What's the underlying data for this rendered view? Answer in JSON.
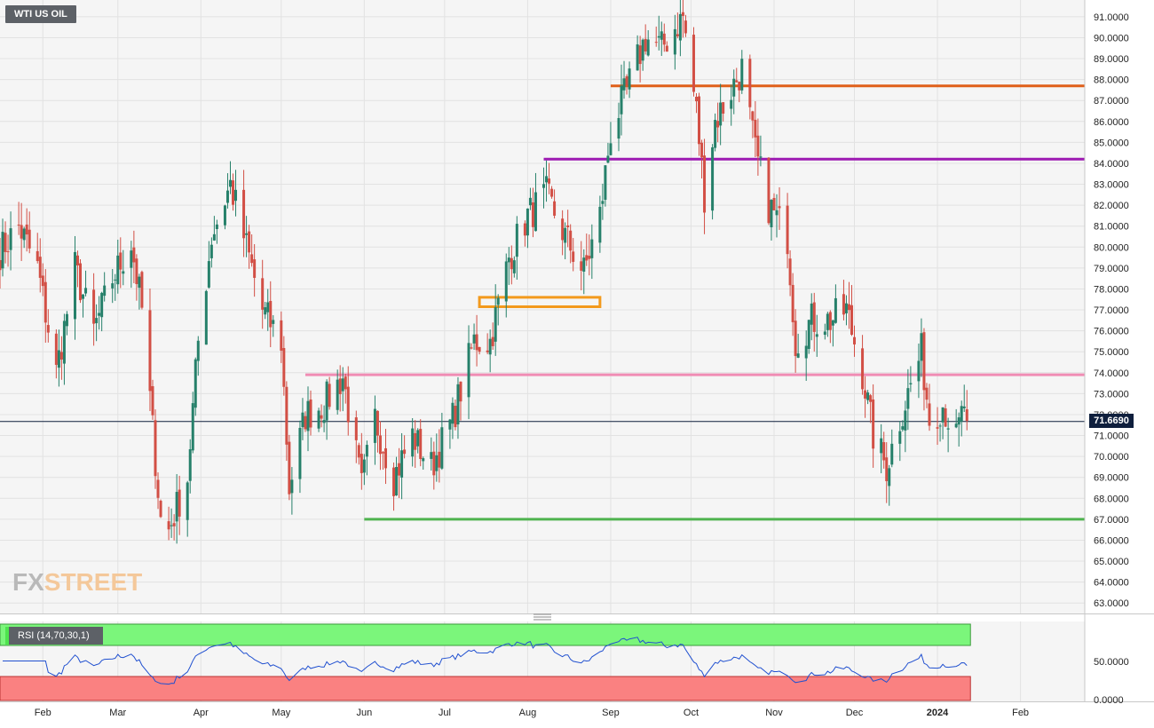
{
  "symbol": "WTI US OIL",
  "logo": {
    "fx": "FX",
    "street": "STREET"
  },
  "last_price_label": "71.6690",
  "price_axis_labels": [
    "91.0000",
    "90.0000",
    "89.0000",
    "88.0000",
    "87.0000",
    "86.0000",
    "85.0000",
    "84.0000",
    "83.0000",
    "82.0000",
    "81.0000",
    "80.0000",
    "79.0000",
    "78.0000",
    "77.0000",
    "76.0000",
    "75.0000",
    "74.0000",
    "73.0000",
    "72.0000",
    "71.0000",
    "70.0000",
    "69.0000",
    "68.0000",
    "67.0000",
    "66.0000",
    "65.0000",
    "64.0000",
    "63.0000"
  ],
  "rsi": {
    "title": "RSI (14,70,30,1)",
    "axis_labels": [
      "50.0000",
      "0.0000"
    ],
    "overbought": 70,
    "oversold": 30
  },
  "colors": {
    "up": "#26806a",
    "down": "#d24f45",
    "orange_line": "#e0601a",
    "purple_line": "#9d1ab2",
    "pink_line": "#f08cb4",
    "green_line": "#4fb34f",
    "zone_box": "#f39a1d",
    "rsi_line": "#2050d0",
    "rsi_top": "#7bf67b",
    "rsi_bottom": "#fa8181",
    "last_price": "#0f1f3d"
  },
  "chart_data": {
    "type": "candlestick",
    "title": "WTI US OIL",
    "x_months": [
      "Feb",
      "Mar",
      "Apr",
      "May",
      "Jun",
      "Jul",
      "Aug",
      "Sep",
      "Oct",
      "Nov",
      "Dec",
      "2024",
      "Feb"
    ],
    "x_range": [
      "2023-01-16",
      "2024-02-25"
    ],
    "ylim": [
      62.5,
      91.8
    ],
    "last_price": 71.669,
    "horizontal_levels": [
      {
        "value": 87.7,
        "from": "2023-09-01",
        "color": "#e0601a"
      },
      {
        "value": 84.2,
        "from": "2023-08-07",
        "color": "#9d1ab2"
      },
      {
        "value": 73.9,
        "from": "2023-05-10",
        "color": "#f08cb4"
      },
      {
        "value": 67.0,
        "from": "2023-06-01",
        "color": "#4fb34f"
      }
    ],
    "zone": {
      "from": "2023-07-14",
      "to": "2023-08-28",
      "low": 77.15,
      "high": 77.6
    },
    "anchors": [
      [
        "2023-01-16",
        79.8
      ],
      [
        "2023-01-23",
        81.0
      ],
      [
        "2023-01-30",
        79.0
      ],
      [
        "2023-02-06",
        74.0
      ],
      [
        "2023-02-13",
        79.0
      ],
      [
        "2023-02-20",
        76.0
      ],
      [
        "2023-02-27",
        78.5
      ],
      [
        "2023-03-06",
        80.2
      ],
      [
        "2023-03-10",
        77.0
      ],
      [
        "2023-03-17",
        67.0
      ],
      [
        "2023-03-20",
        66.5
      ],
      [
        "2023-03-27",
        69.0
      ],
      [
        "2023-03-31",
        75.5
      ],
      [
        "2023-04-05",
        80.5
      ],
      [
        "2023-04-12",
        83.0
      ],
      [
        "2023-04-18",
        80.0
      ],
      [
        "2023-04-24",
        77.0
      ],
      [
        "2023-05-01",
        75.5
      ],
      [
        "2023-05-04",
        68.5
      ],
      [
        "2023-05-10",
        72.0
      ],
      [
        "2023-05-17",
        72.5
      ],
      [
        "2023-05-24",
        73.8
      ],
      [
        "2023-05-31",
        68.5
      ],
      [
        "2023-06-05",
        71.8
      ],
      [
        "2023-06-12",
        69.0
      ],
      [
        "2023-06-19",
        71.0
      ],
      [
        "2023-06-26",
        69.5
      ],
      [
        "2023-07-04",
        71.8
      ],
      [
        "2023-07-12",
        75.5
      ],
      [
        "2023-07-18",
        75.5
      ],
      [
        "2023-07-25",
        79.5
      ],
      [
        "2023-08-01",
        81.5
      ],
      [
        "2023-08-08",
        82.5
      ],
      [
        "2023-08-15",
        80.5
      ],
      [
        "2023-08-22",
        78.8
      ],
      [
        "2023-08-28",
        81.5
      ],
      [
        "2023-09-01",
        85.5
      ],
      [
        "2023-09-07",
        87.5
      ],
      [
        "2023-09-14",
        90.0
      ],
      [
        "2023-09-20",
        89.5
      ],
      [
        "2023-09-25",
        90.5
      ],
      [
        "2023-09-28",
        91.0
      ],
      [
        "2023-10-03",
        86.5
      ],
      [
        "2023-10-06",
        82.5
      ],
      [
        "2023-10-10",
        86.0
      ],
      [
        "2023-10-16",
        87.5
      ],
      [
        "2023-10-20",
        88.5
      ],
      [
        "2023-10-25",
        84.5
      ],
      [
        "2023-10-30",
        82.0
      ],
      [
        "2023-11-06",
        80.5
      ],
      [
        "2023-11-09",
        75.5
      ],
      [
        "2023-11-15",
        76.5
      ],
      [
        "2023-11-22",
        76.5
      ],
      [
        "2023-11-28",
        77.0
      ],
      [
        "2023-12-04",
        74.0
      ],
      [
        "2023-12-08",
        71.0
      ],
      [
        "2023-12-13",
        69.5
      ],
      [
        "2023-12-18",
        71.8
      ],
      [
        "2023-12-26",
        75.0
      ],
      [
        "2023-12-29",
        71.8
      ],
      [
        "2024-01-03",
        72.5
      ],
      [
        "2024-01-08",
        70.8
      ],
      [
        "2024-01-11",
        72.5
      ],
      [
        "2024-01-12",
        71.7
      ]
    ]
  }
}
